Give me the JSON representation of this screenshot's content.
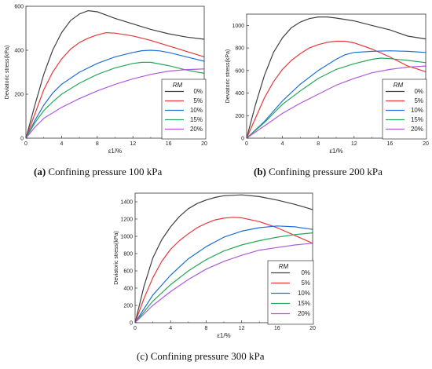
{
  "panels": [
    {
      "caption_letter": "(a)",
      "caption_text": " Confining pressure 100 kPa"
    },
    {
      "caption_letter": "(b)",
      "caption_text": " Confining pressure 200 kPa"
    },
    {
      "caption_letter": "(c)",
      "caption_text": " Confining pressure 300 kPa"
    }
  ],
  "chart_data": [
    {
      "type": "line",
      "ylabel": "Deviatoric stress(kPa)",
      "xlabel": "ε1/%",
      "xlim": [
        0,
        20
      ],
      "ylim": [
        0,
        600
      ],
      "xticks": [
        0,
        4,
        8,
        12,
        16,
        20
      ],
      "yticks": [
        0,
        200,
        400,
        600
      ],
      "legend_title": "RM",
      "legend_position": "bottom-right",
      "grid": false,
      "series": [
        {
          "name": "0%",
          "color": "#404040",
          "points": [
            [
              0,
              0
            ],
            [
              1,
              150
            ],
            [
              2,
              290
            ],
            [
              3,
              400
            ],
            [
              4,
              480
            ],
            [
              5,
              535
            ],
            [
              6,
              565
            ],
            [
              7,
              580
            ],
            [
              8,
              575
            ],
            [
              9,
              560
            ],
            [
              10,
              545
            ],
            [
              12,
              520
            ],
            [
              14,
              495
            ],
            [
              16,
              475
            ],
            [
              18,
              460
            ],
            [
              20,
              450
            ]
          ]
        },
        {
          "name": "5%",
          "color": "#e8383a",
          "points": [
            [
              0,
              0
            ],
            [
              1,
              110
            ],
            [
              2,
              220
            ],
            [
              3,
              300
            ],
            [
              4,
              360
            ],
            [
              5,
              405
            ],
            [
              6,
              435
            ],
            [
              7,
              455
            ],
            [
              8,
              470
            ],
            [
              9,
              480
            ],
            [
              10,
              478
            ],
            [
              12,
              465
            ],
            [
              14,
              445
            ],
            [
              16,
              420
            ],
            [
              18,
              395
            ],
            [
              20,
              370
            ]
          ]
        },
        {
          "name": "10%",
          "color": "#1f6fd6",
          "points": [
            [
              0,
              0
            ],
            [
              1,
              80
            ],
            [
              2,
              150
            ],
            [
              3,
              205
            ],
            [
              4,
              245
            ],
            [
              6,
              300
            ],
            [
              8,
              340
            ],
            [
              10,
              370
            ],
            [
              12,
              390
            ],
            [
              13,
              398
            ],
            [
              14,
              400
            ],
            [
              15,
              397
            ],
            [
              16,
              390
            ],
            [
              18,
              370
            ],
            [
              20,
              350
            ]
          ]
        },
        {
          "name": "15%",
          "color": "#26a955",
          "points": [
            [
              0,
              0
            ],
            [
              1,
              70
            ],
            [
              2,
              125
            ],
            [
              3,
              165
            ],
            [
              4,
              200
            ],
            [
              6,
              250
            ],
            [
              8,
              290
            ],
            [
              10,
              320
            ],
            [
              12,
              340
            ],
            [
              13,
              345
            ],
            [
              14,
              345
            ],
            [
              16,
              330
            ],
            [
              18,
              310
            ],
            [
              20,
              295
            ]
          ]
        },
        {
          "name": "20%",
          "color": "#b05ae0",
          "points": [
            [
              0,
              0
            ],
            [
              1,
              50
            ],
            [
              2,
              90
            ],
            [
              4,
              140
            ],
            [
              6,
              180
            ],
            [
              8,
              215
            ],
            [
              10,
              245
            ],
            [
              12,
              270
            ],
            [
              14,
              290
            ],
            [
              16,
              305
            ],
            [
              18,
              312
            ],
            [
              20,
              315
            ]
          ]
        }
      ]
    },
    {
      "type": "line",
      "ylabel": "Deviatoric stress(kPa)",
      "xlabel": "ε1/%",
      "xlim": [
        0,
        20
      ],
      "ylim": [
        0,
        1100
      ],
      "xticks": [
        0,
        4,
        8,
        12,
        16,
        20
      ],
      "yticks": [
        0,
        200,
        400,
        600,
        800,
        1000
      ],
      "legend_title": "RM",
      "legend_position": "bottom-right",
      "grid": false,
      "series": [
        {
          "name": "0%",
          "color": "#404040",
          "points": [
            [
              0,
              0
            ],
            [
              1,
              300
            ],
            [
              2,
              560
            ],
            [
              3,
              760
            ],
            [
              4,
              890
            ],
            [
              5,
              980
            ],
            [
              6,
              1030
            ],
            [
              7,
              1060
            ],
            [
              8,
              1075
            ],
            [
              9,
              1075
            ],
            [
              10,
              1065
            ],
            [
              12,
              1040
            ],
            [
              14,
              1000
            ],
            [
              16,
              960
            ],
            [
              18,
              905
            ],
            [
              20,
              880
            ]
          ]
        },
        {
          "name": "5%",
          "color": "#e8383a",
          "points": [
            [
              0,
              0
            ],
            [
              1,
              180
            ],
            [
              2,
              360
            ],
            [
              3,
              500
            ],
            [
              4,
              610
            ],
            [
              5,
              690
            ],
            [
              6,
              750
            ],
            [
              7,
              800
            ],
            [
              8,
              830
            ],
            [
              9,
              850
            ],
            [
              10,
              860
            ],
            [
              11,
              860
            ],
            [
              12,
              845
            ],
            [
              14,
              790
            ],
            [
              16,
              720
            ],
            [
              18,
              640
            ],
            [
              20,
              590
            ]
          ]
        },
        {
          "name": "10%",
          "color": "#1f6fd6",
          "points": [
            [
              0,
              0
            ],
            [
              2,
              150
            ],
            [
              4,
              330
            ],
            [
              6,
              480
            ],
            [
              8,
              600
            ],
            [
              10,
              700
            ],
            [
              11,
              740
            ],
            [
              12,
              760
            ],
            [
              14,
              770
            ],
            [
              16,
              775
            ],
            [
              18,
              770
            ],
            [
              20,
              760
            ]
          ]
        },
        {
          "name": "15%",
          "color": "#26a955",
          "points": [
            [
              0,
              0
            ],
            [
              2,
              140
            ],
            [
              4,
              300
            ],
            [
              6,
              420
            ],
            [
              8,
              530
            ],
            [
              10,
              610
            ],
            [
              12,
              660
            ],
            [
              14,
              700
            ],
            [
              15,
              710
            ],
            [
              16,
              705
            ],
            [
              18,
              690
            ],
            [
              20,
              670
            ]
          ]
        },
        {
          "name": "20%",
          "color": "#b05ae0",
          "points": [
            [
              0,
              0
            ],
            [
              2,
              110
            ],
            [
              4,
              220
            ],
            [
              6,
              310
            ],
            [
              8,
              390
            ],
            [
              10,
              470
            ],
            [
              11,
              500
            ],
            [
              12,
              530
            ],
            [
              14,
              580
            ],
            [
              16,
              610
            ],
            [
              18,
              630
            ],
            [
              20,
              640
            ]
          ]
        }
      ]
    },
    {
      "type": "line",
      "ylabel": "Deviatoric stress(kPa)",
      "xlabel": "ε1/%",
      "xlim": [
        0,
        20
      ],
      "ylim": [
        0,
        1500
      ],
      "xticks": [
        0,
        4,
        8,
        12,
        16,
        20
      ],
      "yticks": [
        0,
        200,
        400,
        600,
        800,
        1000,
        1200,
        1400
      ],
      "legend_title": "RM",
      "legend_position": "bottom-right",
      "grid": false,
      "series": [
        {
          "name": "0%",
          "color": "#404040",
          "points": [
            [
              0,
              0
            ],
            [
              1,
              420
            ],
            [
              2,
              750
            ],
            [
              3,
              960
            ],
            [
              4,
              1110
            ],
            [
              5,
              1230
            ],
            [
              6,
              1320
            ],
            [
              7,
              1380
            ],
            [
              8,
              1420
            ],
            [
              9,
              1450
            ],
            [
              10,
              1470
            ],
            [
              12,
              1480
            ],
            [
              14,
              1460
            ],
            [
              16,
              1420
            ],
            [
              18,
              1370
            ],
            [
              20,
              1310
            ]
          ]
        },
        {
          "name": "5%",
          "color": "#e8383a",
          "points": [
            [
              0,
              0
            ],
            [
              1,
              280
            ],
            [
              2,
              520
            ],
            [
              3,
              710
            ],
            [
              4,
              850
            ],
            [
              5,
              950
            ],
            [
              6,
              1030
            ],
            [
              7,
              1100
            ],
            [
              8,
              1150
            ],
            [
              9,
              1190
            ],
            [
              10,
              1210
            ],
            [
              11,
              1220
            ],
            [
              12,
              1215
            ],
            [
              14,
              1170
            ],
            [
              16,
              1100
            ],
            [
              18,
              1010
            ],
            [
              20,
              920
            ]
          ]
        },
        {
          "name": "10%",
          "color": "#1f6fd6",
          "points": [
            [
              0,
              0
            ],
            [
              2,
              320
            ],
            [
              4,
              550
            ],
            [
              6,
              740
            ],
            [
              8,
              880
            ],
            [
              10,
              990
            ],
            [
              12,
              1060
            ],
            [
              14,
              1100
            ],
            [
              16,
              1120
            ],
            [
              18,
              1110
            ],
            [
              20,
              1080
            ]
          ]
        },
        {
          "name": "15%",
          "color": "#26a955",
          "points": [
            [
              0,
              0
            ],
            [
              2,
              250
            ],
            [
              4,
              440
            ],
            [
              6,
              600
            ],
            [
              8,
              730
            ],
            [
              10,
              830
            ],
            [
              12,
              900
            ],
            [
              14,
              950
            ],
            [
              16,
              990
            ],
            [
              18,
              1020
            ],
            [
              20,
              1040
            ]
          ]
        },
        {
          "name": "20%",
          "color": "#b05ae0",
          "points": [
            [
              0,
              0
            ],
            [
              2,
              200
            ],
            [
              4,
              360
            ],
            [
              6,
              500
            ],
            [
              8,
              620
            ],
            [
              10,
              710
            ],
            [
              12,
              780
            ],
            [
              14,
              840
            ],
            [
              16,
              870
            ],
            [
              18,
              900
            ],
            [
              20,
              920
            ]
          ]
        }
      ]
    }
  ]
}
